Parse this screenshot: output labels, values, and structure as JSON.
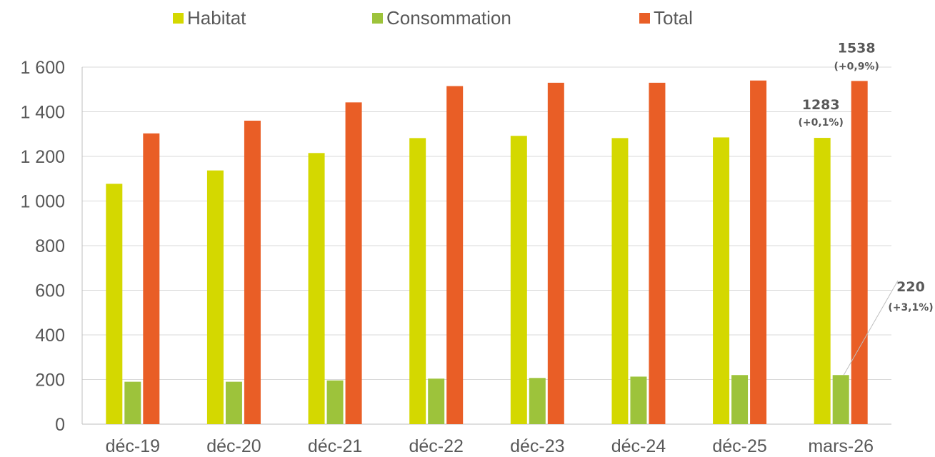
{
  "chart_data": {
    "type": "bar",
    "categories": [
      "déc-19",
      "déc-20",
      "déc-21",
      "déc-22",
      "déc-23",
      "déc-24",
      "déc-25",
      "mars-26"
    ],
    "series": [
      {
        "name": "Habitat",
        "color": "#d4d800",
        "values": [
          1077,
          1137,
          1215,
          1282,
          1292,
          1282,
          1285,
          1283
        ]
      },
      {
        "name": "Consommation",
        "color": "#9dc33b",
        "values": [
          190,
          190,
          196,
          204,
          207,
          213,
          220,
          220
        ]
      },
      {
        "name": "Total",
        "color": "#e95e26",
        "values": [
          1303,
          1360,
          1442,
          1515,
          1530,
          1530,
          1540,
          1538
        ]
      }
    ],
    "title": "",
    "xlabel": "",
    "ylabel": "",
    "ylim": [
      0,
      1600
    ],
    "yticks": [
      0,
      200,
      400,
      600,
      800,
      1000,
      1200,
      1400,
      1600
    ],
    "ytick_labels": [
      "0",
      "200",
      "400",
      "600",
      "800",
      "1 000",
      "1 200",
      "1 400",
      "1 600"
    ],
    "grid": true,
    "legend_position": "top",
    "annotations": [
      {
        "series": "Total",
        "category": "mars-26",
        "value": "1538",
        "change": "(+0,9%)"
      },
      {
        "series": "Habitat",
        "category": "mars-26",
        "value": "1283",
        "change": "(+0,1%)"
      },
      {
        "series": "Consommation",
        "category": "mars-26",
        "value": "220",
        "change": "(+3,1%)"
      }
    ]
  }
}
